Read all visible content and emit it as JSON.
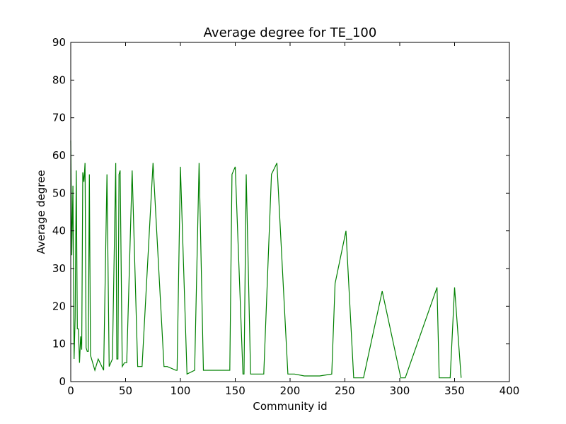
{
  "chart_data": {
    "type": "line",
    "title": "Average degree for TE_100",
    "xlabel": "Community id",
    "ylabel": "Average degree",
    "xlim": [
      0,
      400
    ],
    "ylim": [
      0,
      90
    ],
    "xticks": [
      0,
      50,
      100,
      150,
      200,
      250,
      300,
      350,
      400
    ],
    "yticks": [
      0,
      10,
      20,
      30,
      40,
      50,
      60,
      70,
      80,
      90
    ],
    "grid": false,
    "legend": "none",
    "series": [
      {
        "color": "#008000",
        "x": [
          0,
          1,
          2,
          3,
          4,
          5,
          6,
          7,
          8,
          9,
          10,
          11,
          12,
          13,
          14,
          15,
          16,
          17,
          18,
          22,
          25,
          30,
          33,
          35,
          38,
          41,
          42,
          43,
          44,
          45,
          47,
          49,
          51,
          56,
          61,
          65,
          75,
          85,
          88,
          96,
          97,
          100,
          106,
          113,
          117,
          121,
          126,
          145,
          147,
          150,
          157,
          158,
          160,
          164,
          166,
          176,
          183,
          188,
          198,
          204,
          213,
          227,
          238,
          241,
          251,
          258,
          267,
          284,
          301,
          305,
          334,
          336,
          346,
          350,
          356
        ],
        "y": [
          64,
          33.5,
          52,
          6,
          17,
          56,
          14,
          14,
          5,
          12,
          8.5,
          55.5,
          53,
          58,
          9,
          8,
          8,
          55,
          7,
          3,
          6,
          3,
          55,
          4,
          6,
          58,
          6,
          6,
          55,
          56,
          4,
          5,
          5,
          56,
          4,
          4,
          58,
          4,
          4,
          3,
          3,
          57,
          2,
          3,
          58,
          3,
          3,
          3,
          55,
          57,
          2,
          2,
          55,
          2,
          2,
          2,
          55,
          58,
          2,
          2,
          1.5,
          1.5,
          2,
          26,
          40,
          1,
          1,
          24,
          1,
          1,
          25,
          1,
          1,
          25,
          1
        ]
      }
    ]
  }
}
